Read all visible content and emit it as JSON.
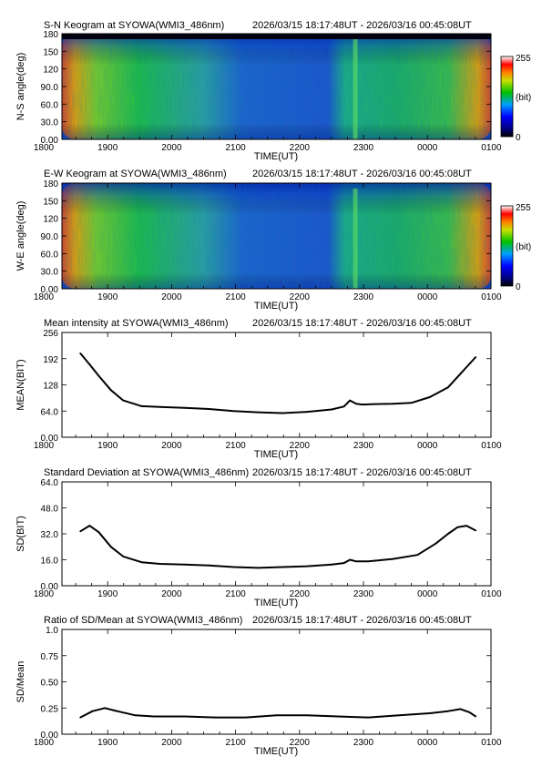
{
  "chart_data": [
    {
      "type": "heatmap",
      "title": "S-N Keogram at SYOWA(WMI3_486nm)",
      "time_range": "2026/03/15 18:17:48UT - 2026/03/16 00:45:08UT",
      "xlabel": "TIME(UT)",
      "ylabel": "N-S angle(deg)",
      "x_ticks": [
        "1800",
        "1900",
        "2000",
        "2100",
        "2200",
        "2300",
        "0000",
        "0100"
      ],
      "y_ticks": [
        "0.00",
        "30.0",
        "60.0",
        "90.0",
        "120",
        "150",
        "180"
      ],
      "ylim": [
        0,
        180
      ],
      "colorbar": {
        "min_label": "0",
        "max_label": "255",
        "unit": "(bit)"
      }
    },
    {
      "type": "heatmap",
      "title": "E-W Keogram at SYOWA(WMI3_486nm)",
      "time_range": "2026/03/15 18:17:48UT - 2026/03/16 00:45:08UT",
      "xlabel": "TIME(UT)",
      "ylabel": "W-E angle(deg)",
      "x_ticks": [
        "1800",
        "1900",
        "2000",
        "2100",
        "2200",
        "2300",
        "0000",
        "0100"
      ],
      "y_ticks": [
        "0.00",
        "30.0",
        "60.0",
        "90.0",
        "120",
        "150",
        "180"
      ],
      "ylim": [
        0,
        180
      ],
      "colorbar": {
        "min_label": "0",
        "max_label": "255",
        "unit": "(bit)"
      }
    },
    {
      "type": "line",
      "title": "Mean intensity at SYOWA(WMI3_486nm)",
      "time_range": "2026/03/15 18:17:48UT - 2026/03/16 00:45:08UT",
      "xlabel": "TIME(UT)",
      "ylabel": "MEAN(BIT)",
      "x_ticks": [
        "1800",
        "1900",
        "2000",
        "2100",
        "2200",
        "2300",
        "0000",
        "0100"
      ],
      "y_ticks": [
        "0.00",
        "64.0",
        "128",
        "192",
        "256"
      ],
      "xlim": [
        18.0,
        25.0
      ],
      "ylim": [
        0,
        256
      ],
      "x": [
        18.3,
        18.45,
        18.6,
        18.8,
        19.0,
        19.3,
        19.6,
        20.0,
        20.4,
        20.8,
        21.2,
        21.6,
        22.0,
        22.4,
        22.6,
        22.7,
        22.8,
        22.9,
        23.1,
        23.4,
        23.7,
        24.0,
        24.3,
        24.5,
        24.75
      ],
      "values": [
        205,
        178,
        150,
        115,
        90,
        76,
        74,
        72,
        69,
        64,
        61,
        59,
        62,
        68,
        75,
        90,
        82,
        80,
        81,
        82,
        84,
        98,
        122,
        155,
        196
      ]
    },
    {
      "type": "line",
      "title": "Standard Deviation at SYOWA(WMI3_486nm)",
      "time_range": "2026/03/15 18:17:48UT - 2026/03/16 00:45:08UT",
      "xlabel": "TIME(UT)",
      "ylabel": "SD(BIT)",
      "x_ticks": [
        "1800",
        "1900",
        "2000",
        "2100",
        "2200",
        "2300",
        "0000",
        "0100"
      ],
      "y_ticks": [
        "0.00",
        "16.0",
        "32.0",
        "48.0",
        "64.0"
      ],
      "xlim": [
        18.0,
        25.0
      ],
      "ylim": [
        0,
        64
      ],
      "x": [
        18.3,
        18.45,
        18.6,
        18.8,
        19.0,
        19.3,
        19.6,
        20.0,
        20.4,
        20.8,
        21.2,
        21.6,
        22.0,
        22.4,
        22.6,
        22.7,
        22.8,
        23.0,
        23.4,
        23.8,
        24.1,
        24.3,
        24.45,
        24.6,
        24.75
      ],
      "values": [
        33.5,
        37,
        33,
        24,
        18,
        14.5,
        13.5,
        13,
        12.5,
        11.5,
        11,
        11.5,
        12,
        13,
        14,
        16,
        15,
        15,
        16.5,
        19,
        26,
        32,
        36,
        37,
        34
      ]
    },
    {
      "type": "line",
      "title": "Ratio of SD/Mean at SYOWA(WMI3_486nm)",
      "time_range": "2026/03/15 18:17:48UT - 2026/03/16 00:45:08UT",
      "xlabel": "TIME(UT)",
      "ylabel": "SD/Mean",
      "x_ticks": [
        "1800",
        "1900",
        "2000",
        "2100",
        "2200",
        "2300",
        "0000",
        "0100"
      ],
      "y_ticks": [
        "0.00",
        "0.25",
        "0.50",
        "0.75",
        "1.0"
      ],
      "xlim": [
        18.0,
        25.0
      ],
      "ylim": [
        0,
        1.0
      ],
      "x": [
        18.3,
        18.5,
        18.7,
        18.9,
        19.2,
        19.5,
        20.0,
        20.5,
        21.0,
        21.5,
        22.0,
        22.5,
        23.0,
        23.5,
        24.0,
        24.3,
        24.5,
        24.65,
        24.75
      ],
      "values": [
        0.16,
        0.22,
        0.25,
        0.22,
        0.18,
        0.17,
        0.17,
        0.16,
        0.16,
        0.18,
        0.18,
        0.17,
        0.16,
        0.18,
        0.2,
        0.22,
        0.24,
        0.21,
        0.17
      ]
    }
  ]
}
